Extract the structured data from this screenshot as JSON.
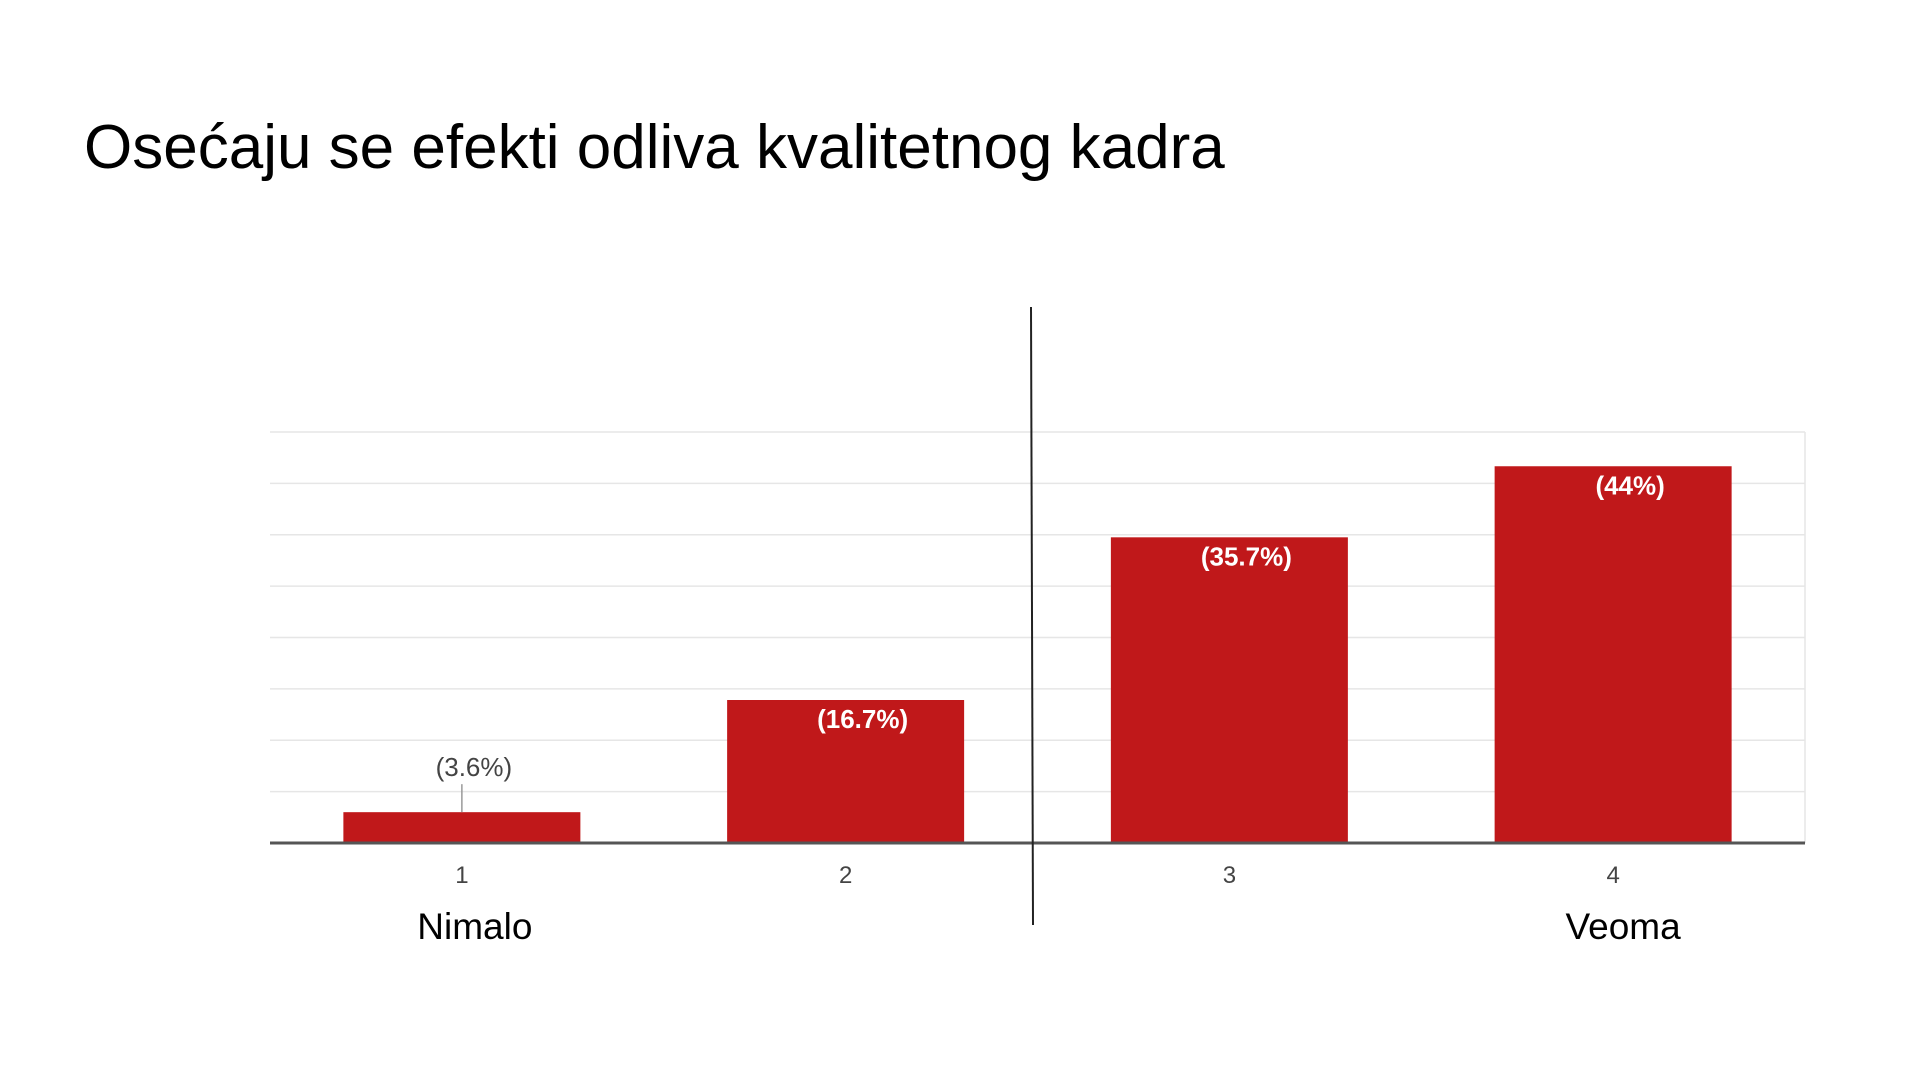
{
  "slide": {
    "title": "Osećaju se efekti odliva kvalitetnog kadra"
  },
  "chart_data": {
    "type": "bar",
    "categories": [
      "1",
      "2",
      "3",
      "4"
    ],
    "values": [
      3.6,
      16.7,
      35.7,
      44
    ],
    "data_labels": [
      "(3.6%)",
      "(16.7%)",
      "(35.7%)",
      "(44%)"
    ],
    "unit": "%",
    "ylim": [
      0,
      48
    ],
    "grid": true,
    "legend": "none",
    "scale_anchor_labels": {
      "low": "Nimalo",
      "high": "Veoma"
    },
    "colors": {
      "bar": "#c0181a",
      "gridline": "#e6e6e6",
      "axis": "#555555",
      "divider": "#222222"
    }
  }
}
